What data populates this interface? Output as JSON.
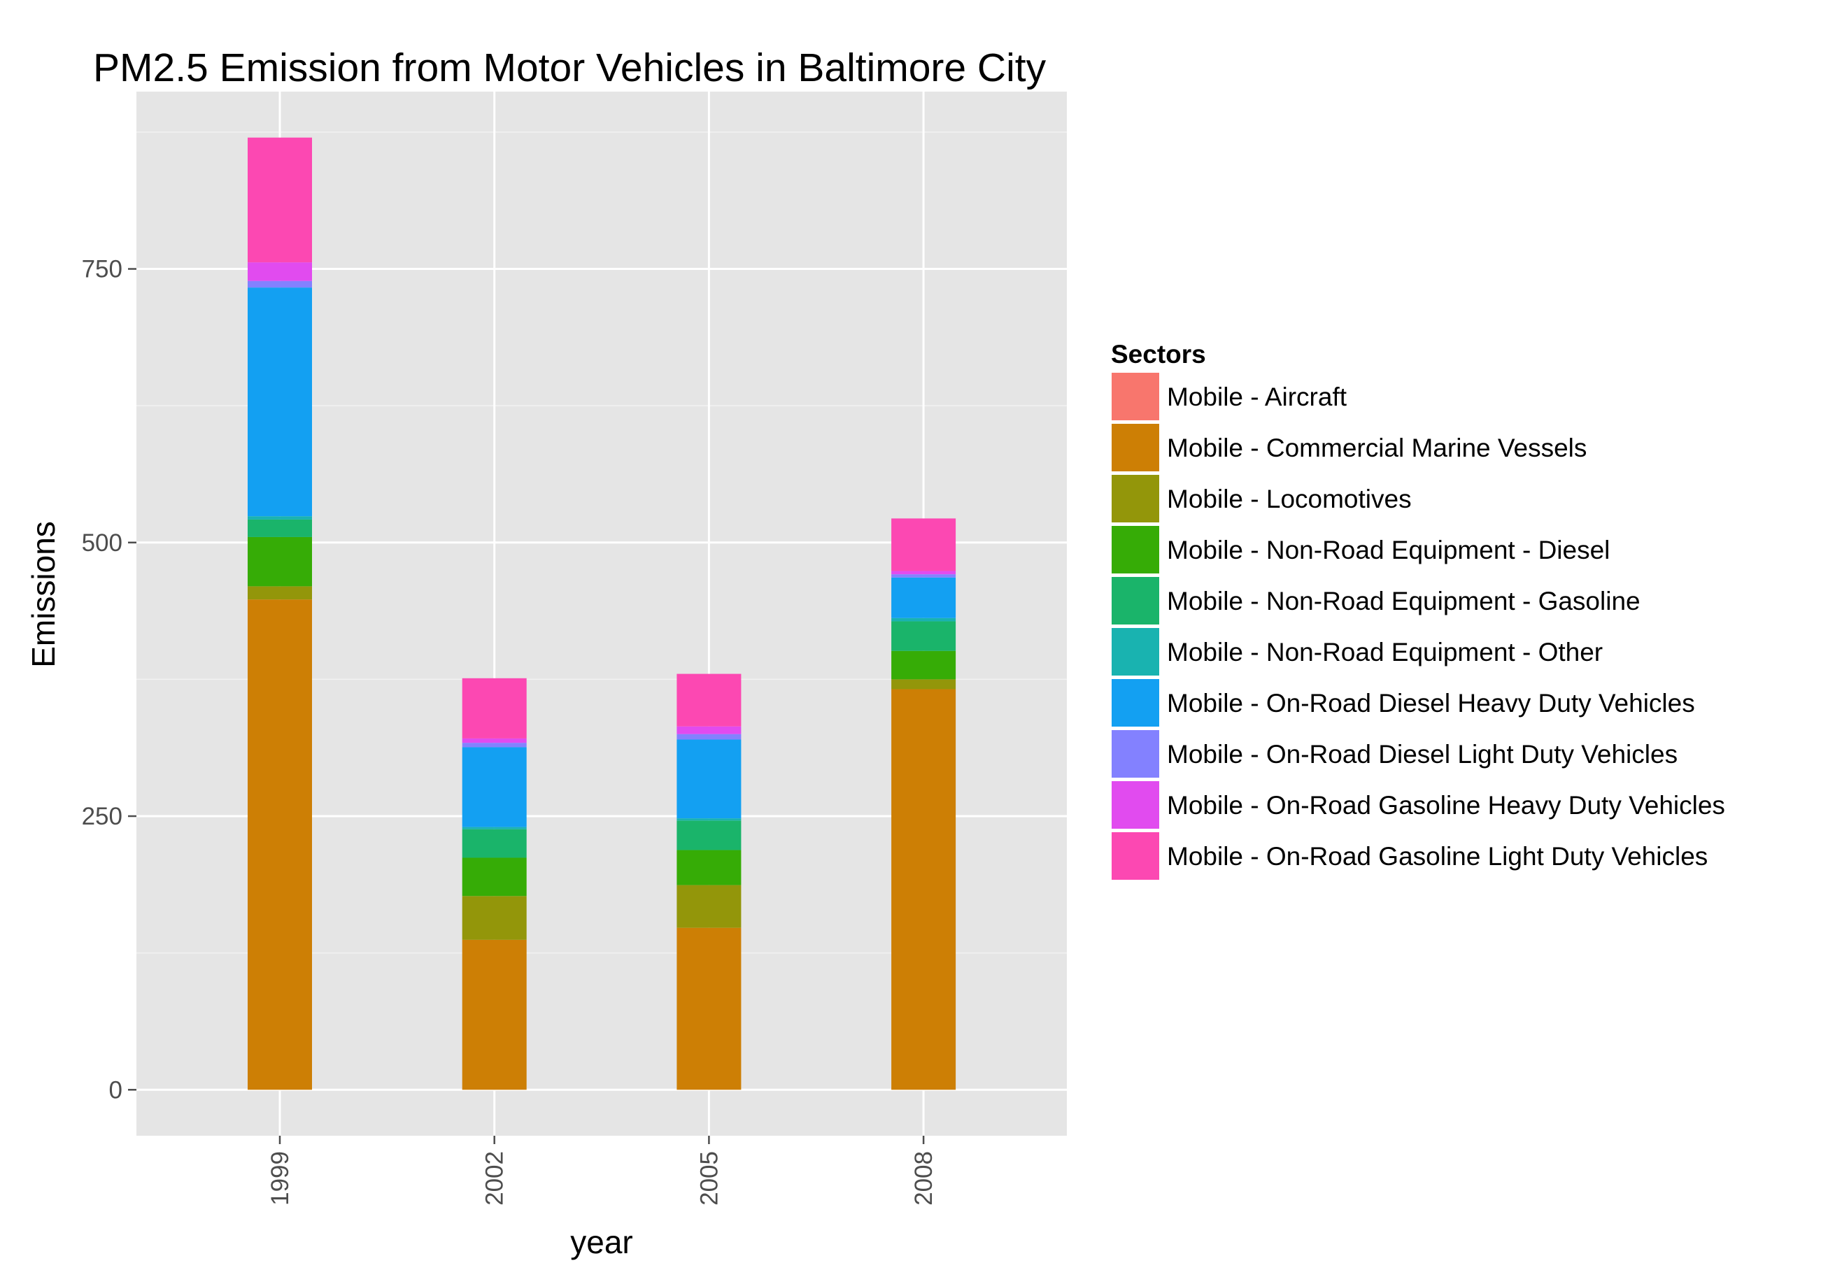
{
  "chart_data": {
    "type": "bar",
    "stacked": true,
    "title": "PM2.5 Emission from Motor Vehicles in Baltimore City",
    "xlabel": "year",
    "ylabel": "Emissions",
    "categories": [
      "1999",
      "2002",
      "2005",
      "2008"
    ],
    "yticks": [
      0,
      250,
      500,
      750
    ],
    "ylim": [
      -42,
      912
    ],
    "grid": true,
    "background": "#e5e5e5",
    "legend": {
      "title": "Sectors",
      "position": "right"
    },
    "series": [
      {
        "name": "Mobile - Aircraft",
        "color": "#F8766D",
        "values": [
          0,
          0,
          0,
          0
        ]
      },
      {
        "name": "Mobile - Commercial Marine Vessels",
        "color": "#CD7F05",
        "values": [
          448,
          137,
          148,
          366
        ]
      },
      {
        "name": "Mobile - Locomotives",
        "color": "#93960A",
        "values": [
          12,
          40,
          39,
          9
        ]
      },
      {
        "name": "Mobile - Non-Road Equipment - Diesel",
        "color": "#36AC06",
        "values": [
          45,
          35,
          32,
          26
        ]
      },
      {
        "name": "Mobile - Non-Road Equipment - Gasoline",
        "color": "#1AB46A",
        "values": [
          16,
          26,
          27,
          27
        ]
      },
      {
        "name": "Mobile - Non-Road Equipment - Other",
        "color": "#19B3B0",
        "values": [
          3,
          2,
          2,
          3
        ]
      },
      {
        "name": "Mobile - On-Road Diesel Heavy Duty Vehicles",
        "color": "#13A0F2",
        "values": [
          209,
          73,
          72,
          37
        ]
      },
      {
        "name": "Mobile - On-Road Diesel Light Duty Vehicles",
        "color": "#8381FF",
        "values": [
          6,
          4,
          5,
          3
        ]
      },
      {
        "name": "Mobile - On-Road Gasoline Heavy Duty Vehicles",
        "color": "#E14BEF",
        "values": [
          17,
          4,
          7,
          3
        ]
      },
      {
        "name": "Mobile - On-Road Gasoline Light Duty Vehicles",
        "color": "#FC48B2",
        "values": [
          114,
          55,
          48,
          48
        ]
      }
    ]
  }
}
